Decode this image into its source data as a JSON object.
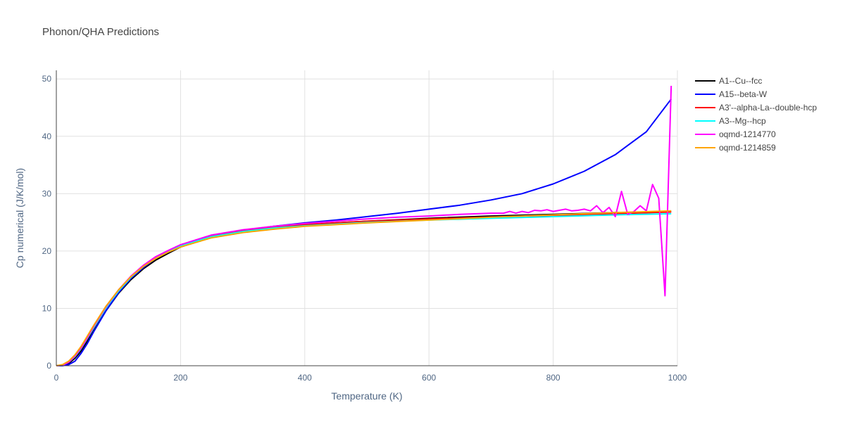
{
  "chart_data": {
    "type": "line",
    "title": "Phonon/QHA Predictions",
    "xlabel": "Temperature (K)",
    "ylabel": "Cp numerical (J/K/mol)",
    "xlim": [
      0,
      1000
    ],
    "ylim": [
      0,
      51.5
    ],
    "x_ticks": [
      0,
      200,
      400,
      600,
      800,
      1000
    ],
    "y_ticks": [
      0,
      10,
      20,
      30,
      40,
      50
    ],
    "grid": true,
    "legend_position": "right",
    "series": [
      {
        "name": "A1--Cu--fcc",
        "color": "#000000",
        "x": [
          0,
          10,
          20,
          30,
          40,
          50,
          60,
          80,
          100,
          120,
          140,
          160,
          180,
          200,
          250,
          300,
          350,
          400,
          450,
          500,
          600,
          700,
          800,
          900,
          990
        ],
        "y": [
          0,
          0.1,
          0.4,
          1.3,
          2.6,
          4.3,
          6.1,
          9.6,
          12.6,
          15.0,
          16.9,
          18.4,
          19.6,
          20.7,
          22.4,
          23.4,
          24.0,
          24.5,
          24.9,
          25.2,
          25.7,
          26.1,
          26.4,
          26.7,
          26.9
        ]
      },
      {
        "name": "A15--beta-W",
        "color": "#0000ff",
        "x": [
          0,
          10,
          20,
          30,
          40,
          50,
          60,
          80,
          100,
          120,
          140,
          160,
          180,
          200,
          250,
          300,
          350,
          400,
          450,
          500,
          550,
          600,
          650,
          700,
          750,
          800,
          850,
          900,
          950,
          990
        ],
        "y": [
          0,
          0.0,
          0.2,
          0.8,
          2.2,
          3.9,
          5.9,
          9.6,
          12.7,
          15.2,
          17.1,
          18.7,
          20.0,
          21.0,
          22.6,
          23.6,
          24.3,
          24.9,
          25.4,
          26.0,
          26.6,
          27.3,
          28.0,
          28.9,
          30.0,
          31.7,
          33.9,
          36.8,
          40.8,
          46.5
        ]
      },
      {
        "name": "A3'--alpha-La--double-hcp",
        "color": "#ff0000",
        "x": [
          0,
          10,
          20,
          30,
          40,
          50,
          60,
          80,
          100,
          120,
          140,
          160,
          180,
          200,
          250,
          300,
          350,
          400,
          450,
          500,
          600,
          700,
          800,
          900,
          990
        ],
        "y": [
          0,
          0.1,
          0.6,
          1.6,
          3.0,
          4.8,
          6.6,
          10.1,
          13.0,
          15.4,
          17.3,
          18.8,
          19.9,
          20.9,
          22.6,
          23.5,
          24.1,
          24.6,
          24.9,
          25.2,
          25.6,
          25.9,
          26.2,
          26.5,
          26.8
        ]
      },
      {
        "name": "A3--Mg--hcp",
        "color": "#00ffff",
        "x": [
          0,
          10,
          20,
          30,
          40,
          50,
          60,
          80,
          100,
          120,
          140,
          160,
          180,
          200,
          250,
          300,
          350,
          400,
          450,
          500,
          600,
          700,
          800,
          900,
          990
        ],
        "y": [
          0,
          0.1,
          0.6,
          1.6,
          3.0,
          4.8,
          6.6,
          10.1,
          13.0,
          15.4,
          17.3,
          18.8,
          19.9,
          20.9,
          22.5,
          23.4,
          24.0,
          24.4,
          24.7,
          25.0,
          25.4,
          25.7,
          26.0,
          26.3,
          26.5
        ]
      },
      {
        "name": "oqmd-1214770",
        "color": "#ff00ff",
        "x": [
          0,
          10,
          20,
          30,
          40,
          50,
          60,
          80,
          100,
          120,
          140,
          160,
          180,
          200,
          250,
          300,
          350,
          400,
          450,
          500,
          550,
          600,
          650,
          700,
          720,
          730,
          740,
          750,
          760,
          770,
          780,
          790,
          800,
          810,
          820,
          830,
          840,
          850,
          860,
          870,
          880,
          890,
          900,
          910,
          920,
          930,
          940,
          950,
          960,
          970,
          980,
          990
        ],
        "y": [
          0,
          0.1,
          0.6,
          1.7,
          3.1,
          4.9,
          6.8,
          10.3,
          13.2,
          15.6,
          17.5,
          19.0,
          20.1,
          21.1,
          22.8,
          23.7,
          24.3,
          24.8,
          25.2,
          25.6,
          25.9,
          26.1,
          26.4,
          26.6,
          26.6,
          26.9,
          26.6,
          26.9,
          26.7,
          27.1,
          27.0,
          27.2,
          26.9,
          27.1,
          27.3,
          27.0,
          27.1,
          27.3,
          27.0,
          27.9,
          26.7,
          27.6,
          26.0,
          30.4,
          26.4,
          26.9,
          27.9,
          27.0,
          31.6,
          29.2,
          12.2,
          48.8
        ]
      },
      {
        "name": "oqmd-1214859",
        "color": "#ffa500",
        "x": [
          0,
          10,
          20,
          30,
          40,
          50,
          60,
          80,
          100,
          120,
          140,
          160,
          180,
          200,
          250,
          300,
          350,
          400,
          450,
          500,
          600,
          700,
          800,
          900,
          990
        ],
        "y": [
          0,
          0.2,
          0.8,
          1.9,
          3.4,
          5.2,
          7.0,
          10.4,
          13.2,
          15.5,
          17.3,
          18.7,
          19.8,
          20.7,
          22.3,
          23.2,
          23.8,
          24.3,
          24.6,
          24.9,
          25.4,
          25.9,
          26.3,
          26.7,
          27.0
        ]
      }
    ]
  }
}
